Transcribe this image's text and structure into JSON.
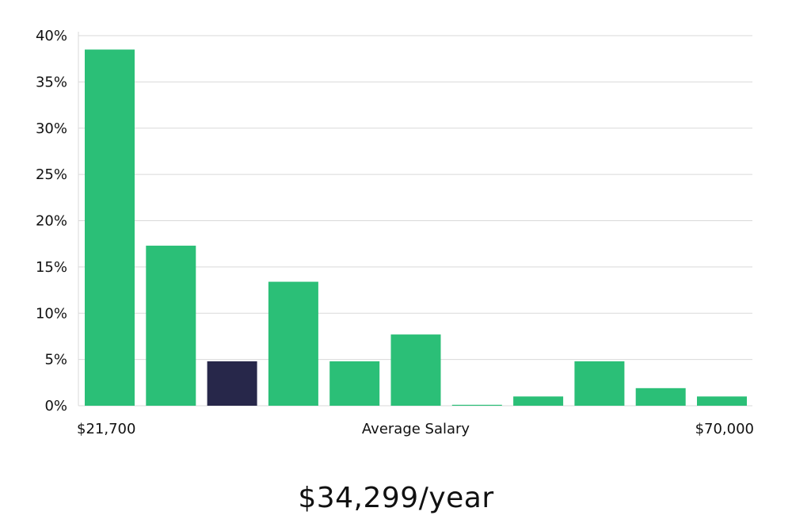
{
  "chart_data": {
    "type": "bar",
    "values": [
      38.5,
      17.3,
      4.8,
      13.4,
      4.8,
      7.7,
      0.1,
      1.0,
      4.8,
      1.9,
      1.0
    ],
    "highlight_index": 2,
    "ylim": [
      0,
      40
    ],
    "yticks": [
      0,
      5,
      10,
      15,
      20,
      25,
      30,
      35,
      40
    ],
    "ytick_suffix": "%",
    "x_min_label": "$21,700",
    "x_max_label": "$70,000",
    "xlabel": "Average Salary",
    "grid": true,
    "colors": {
      "bar": "#2bbf77",
      "highlight": "#27274a",
      "grid": "#d9d9d9",
      "text": "#111111"
    }
  },
  "summary": {
    "salary_text": "$34,299/year"
  }
}
